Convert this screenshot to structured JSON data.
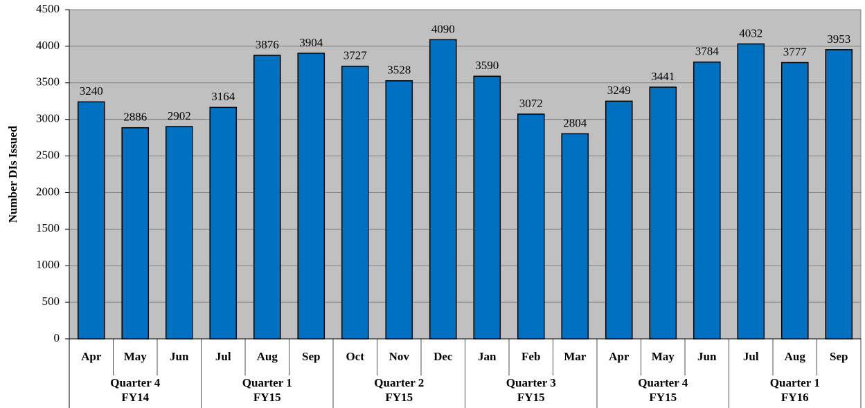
{
  "chart_data": {
    "type": "bar",
    "y_label": "Number DIs Issued",
    "color": "#0070c0",
    "background": "#c0c0c0",
    "ylim": [
      0,
      4500
    ],
    "yticks": [
      0,
      500,
      1000,
      1500,
      2000,
      2500,
      3000,
      3500,
      4000,
      4500
    ],
    "grid": true,
    "groups": [
      {
        "label": [
          "Quarter 4",
          "FY14"
        ],
        "categories": [
          "Apr",
          "May",
          "Jun"
        ],
        "values": [
          3240,
          2886,
          2902
        ]
      },
      {
        "label": [
          "Quarter 1",
          "FY15"
        ],
        "categories": [
          "Jul",
          "Aug",
          "Sep"
        ],
        "values": [
          3164,
          3876,
          3904
        ]
      },
      {
        "label": [
          "Quarter 2",
          "FY15"
        ],
        "categories": [
          "Oct",
          "Nov",
          "Dec"
        ],
        "values": [
          3727,
          3528,
          4090
        ]
      },
      {
        "label": [
          "Quarter 3",
          "FY15"
        ],
        "categories": [
          "Jan",
          "Feb",
          "Mar"
        ],
        "values": [
          3590,
          3072,
          2804
        ]
      },
      {
        "label": [
          "Quarter 4",
          "FY15"
        ],
        "categories": [
          "Apr",
          "May",
          "Jun"
        ],
        "values": [
          3249,
          3441,
          3784
        ]
      },
      {
        "label": [
          "Quarter 1",
          "FY16"
        ],
        "categories": [
          "Jul",
          "Aug",
          "Sep"
        ],
        "values": [
          4032,
          3777,
          3953
        ]
      }
    ]
  }
}
